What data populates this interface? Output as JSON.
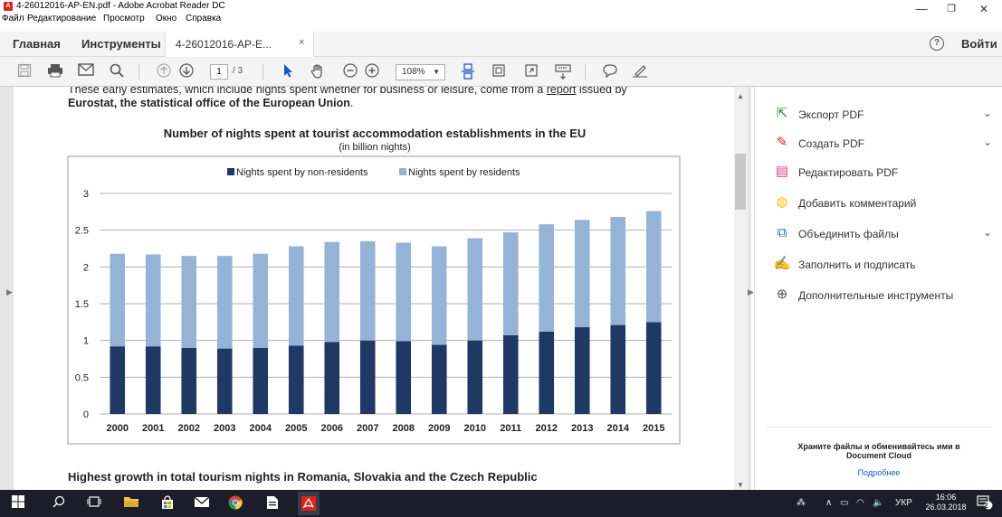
{
  "window": {
    "title": "4-26012016-AP-EN.pdf - Adobe Acrobat Reader DC",
    "minimize": "—",
    "maximize": "❐",
    "close": "✕"
  },
  "menubar": {
    "items": [
      "Файл",
      "Редактирование",
      "Просмотр",
      "Окно",
      "Справка"
    ]
  },
  "tabs": {
    "home": "Главная",
    "tools": "Инструменты",
    "document": "4-26012016-AP-E...",
    "document_close": "×",
    "signin": "Войти",
    "help": "?"
  },
  "toolbar": {
    "page_current": "1",
    "page_total": "/ 3",
    "zoom": "108%",
    "icons": [
      "save-icon",
      "print-icon",
      "email-icon",
      "search-icon",
      "prev-page-icon",
      "next-page-icon",
      "select-cursor-icon",
      "hand-tool-icon",
      "zoom-out-icon",
      "zoom-in-icon",
      "fit-page-icon",
      "fit-width-icon",
      "fullscreen-icon",
      "scroll-mode-icon",
      "comment-icon",
      "sign-icon"
    ]
  },
  "document": {
    "intro_line1": "These early estimates, which include nights spent whether for business or leisure, come from a",
    "intro_link": "report",
    "intro_line1_end": "issued by",
    "intro_line2": "Eurostat, the statistical office of the European Union",
    "intro_line2_end": ".",
    "next_heading": "Highest growth in total tourism nights in Romania, Slovakia and the Czech Republic"
  },
  "chart_data": {
    "type": "bar",
    "stacked": true,
    "title": "Number of nights spent at tourist accommodation establishments in the EU",
    "subtitle": "(in billion nights)",
    "categories": [
      "2000",
      "2001",
      "2002",
      "2003",
      "2004",
      "2005",
      "2006",
      "2007",
      "2008",
      "2009",
      "2010",
      "2011",
      "2012",
      "2013",
      "2014",
      "2015"
    ],
    "series": [
      {
        "name": "Nights spent by non-residents",
        "color": "#1f3864",
        "values": [
          0.92,
          0.92,
          0.9,
          0.89,
          0.9,
          0.93,
          0.98,
          1.0,
          0.99,
          0.94,
          1.0,
          1.07,
          1.12,
          1.18,
          1.21,
          1.25
        ]
      },
      {
        "name": "Nights spent by residents",
        "color": "#95b3d7",
        "values": [
          1.26,
          1.25,
          1.25,
          1.26,
          1.28,
          1.35,
          1.36,
          1.35,
          1.34,
          1.34,
          1.39,
          1.4,
          1.46,
          1.46,
          1.47,
          1.51
        ]
      }
    ],
    "ylim": [
      0,
      3
    ],
    "yticks": [
      "0",
      "0.5",
      "1",
      "1.5",
      "2",
      "2.5",
      "3"
    ],
    "grid": true,
    "legend": "top"
  },
  "rightpanel": {
    "items": [
      {
        "label": "Экспорт PDF",
        "icon": "export-pdf-icon",
        "chevron": true,
        "color": "#2c8c3c"
      },
      {
        "label": "Создать PDF",
        "icon": "create-pdf-icon",
        "chevron": true,
        "color": "#d9261c"
      },
      {
        "label": "Редактировать PDF",
        "icon": "edit-pdf-icon",
        "chevron": false,
        "color": "#e23c84"
      },
      {
        "label": "Добавить комментарий",
        "icon": "comment-icon",
        "chevron": false,
        "color": "#f1c40f"
      },
      {
        "label": "Объединить файлы",
        "icon": "combine-files-icon",
        "chevron": true,
        "color": "#1b6fd6"
      },
      {
        "label": "Заполнить и подписать",
        "icon": "fill-sign-icon",
        "chevron": false,
        "color": "#6a3fc1"
      },
      {
        "label": "Дополнительные инструменты",
        "icon": "more-tools-icon",
        "chevron": false,
        "color": "#555555"
      }
    ],
    "cloud_text_1": "Храните файлы и обменивайтесь ими в",
    "cloud_text_2": "Document Cloud",
    "more_link": "Подробнее"
  },
  "taskbar": {
    "tray_lang": "УКР",
    "clock_time": "16:06",
    "clock_date": "26.03.2018",
    "notifications": "2"
  }
}
